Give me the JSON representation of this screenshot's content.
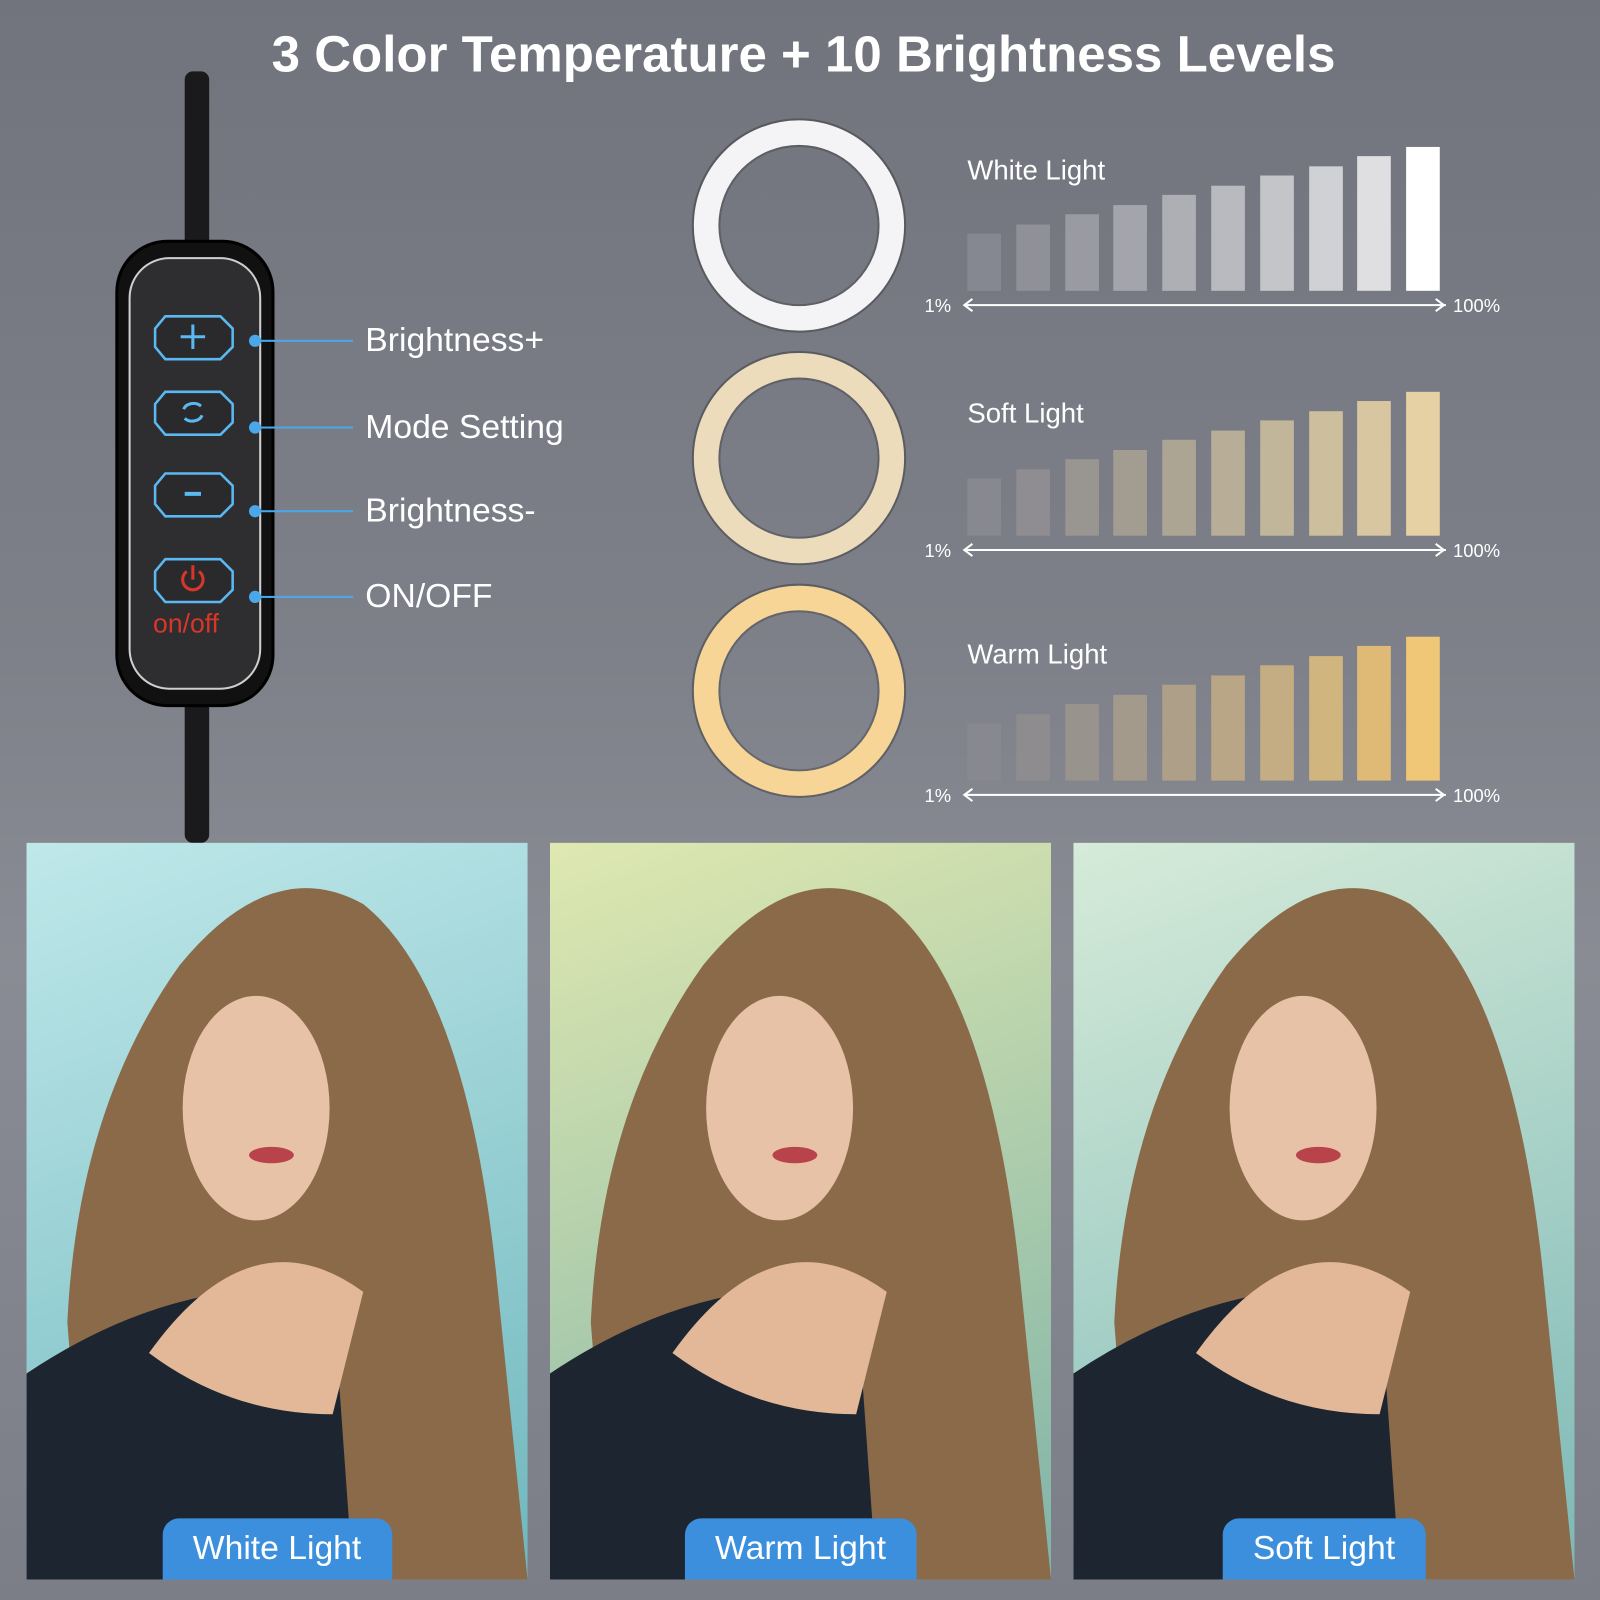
{
  "title": "3 Color Temperature + 10 Brightness Levels",
  "remote": {
    "buttons": [
      {
        "label": "Brightness+",
        "icon": "plus-icon"
      },
      {
        "label": "Mode Setting",
        "icon": "cycle-icon"
      },
      {
        "label": "Brightness-",
        "icon": "minus-icon"
      },
      {
        "label": "ON/OFF",
        "icon": "power-icon"
      }
    ],
    "onoff_text": "on/off",
    "accent": "#4aa8ea",
    "power_color": "#d9362a"
  },
  "modes": [
    {
      "name": "White Light",
      "ring_color": "#f4f4f6",
      "bar_colors": [
        "#868891",
        "#8f9098",
        "#9a9ba2",
        "#a4a5ac",
        "#aeafb5",
        "#b9babf",
        "#c4c5c9",
        "#d0d1d4",
        "#dfdfe1",
        "#ffffff"
      ]
    },
    {
      "name": "Soft Light",
      "ring_color": "#ecdcbc",
      "bar_colors": [
        "#888890",
        "#8f8d91",
        "#999590",
        "#a39c91",
        "#ada593",
        "#b8ad96",
        "#c2b69a",
        "#cdbe9d",
        "#d8c6a0",
        "#e6d1a5"
      ]
    },
    {
      "name": "Warm Light",
      "ring_color": "#f6d596",
      "bar_colors": [
        "#888990",
        "#8f8c8f",
        "#99938e",
        "#a49a8c",
        "#ae9f89",
        "#b9a686",
        "#c4ad82",
        "#d1b57e",
        "#deba76",
        "#f0c677"
      ]
    }
  ],
  "levels": [
    1,
    2,
    3,
    4,
    5,
    6,
    7,
    8,
    9,
    10
  ],
  "scale_min": "1%",
  "scale_max": "100%",
  "photos": [
    {
      "label": "White Light",
      "bg": [
        "#bfe8ea",
        "#6fb7bd"
      ]
    },
    {
      "label": "Warm Light",
      "bg": [
        "#dfe8b0",
        "#7fb3a8"
      ]
    },
    {
      "label": "Soft Light",
      "bg": [
        "#d6ebd9",
        "#7cb8b6"
      ]
    }
  ]
}
